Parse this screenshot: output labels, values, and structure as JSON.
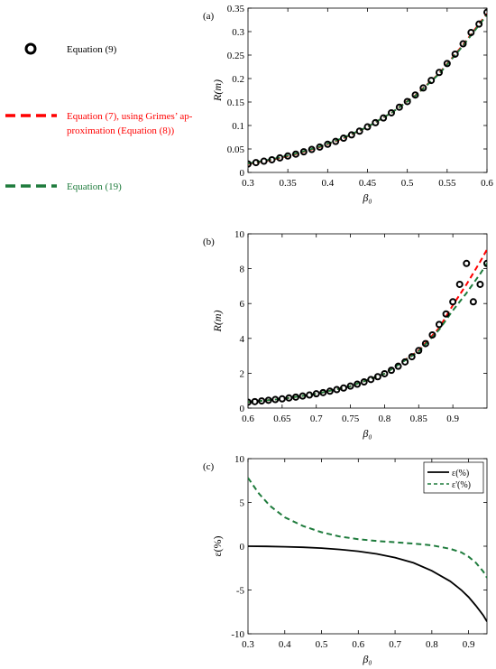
{
  "legend_panel": {
    "items": [
      {
        "label": "Equation (9)",
        "marker": "circle",
        "color": "#000000"
      },
      {
        "label_lines": [
          "Equation (7), using Grimes’ ap-",
          "proximation (Equation (8))"
        ],
        "marker": "dashed-line",
        "color": "#ff0000"
      },
      {
        "label": "Equation (19)",
        "marker": "dashed-line",
        "color": "#1e7b3c"
      }
    ]
  },
  "chart_data": [
    {
      "panel_label": "(a)",
      "type": "line",
      "xlabel": "β₀",
      "ylabel": "R(m)",
      "xlim": [
        0.3,
        0.6
      ],
      "ylim": [
        0,
        0.35
      ],
      "xticks": [
        "0.3",
        "0.35",
        "0.4",
        "0.45",
        "0.5",
        "0.55",
        "0.6"
      ],
      "yticks": [
        "0",
        "0.05",
        "0.1",
        "0.15",
        "0.2",
        "0.25",
        "0.3",
        "0.35"
      ],
      "grid": false,
      "series": [
        {
          "name": "Equation (9)",
          "style": "circles",
          "color": "#000000",
          "x": [
            0.3,
            0.31,
            0.32,
            0.33,
            0.34,
            0.35,
            0.36,
            0.37,
            0.38,
            0.39,
            0.4,
            0.41,
            0.42,
            0.43,
            0.44,
            0.45,
            0.46,
            0.47,
            0.48,
            0.49,
            0.5,
            0.51,
            0.52,
            0.53,
            0.54,
            0.55,
            0.56,
            0.57,
            0.58,
            0.59,
            0.6
          ],
          "y": [
            0.018,
            0.021,
            0.024,
            0.027,
            0.031,
            0.035,
            0.039,
            0.044,
            0.049,
            0.054,
            0.06,
            0.066,
            0.073,
            0.08,
            0.088,
            0.097,
            0.106,
            0.116,
            0.127,
            0.139,
            0.151,
            0.165,
            0.18,
            0.196,
            0.213,
            0.232,
            0.252,
            0.274,
            0.298,
            0.316,
            0.341
          ]
        },
        {
          "name": "Equation (7)",
          "style": "dashed",
          "color": "#ff0000",
          "x": [
            0.3,
            0.33,
            0.36,
            0.39,
            0.42,
            0.45,
            0.48,
            0.51,
            0.54,
            0.57,
            0.6
          ],
          "y": [
            0.018,
            0.027,
            0.039,
            0.054,
            0.073,
            0.097,
            0.127,
            0.164,
            0.211,
            0.272,
            0.338
          ]
        },
        {
          "name": "Equation (19)",
          "style": "dashed",
          "color": "#1e7b3c",
          "x": [
            0.3,
            0.33,
            0.36,
            0.39,
            0.42,
            0.45,
            0.48,
            0.51,
            0.54,
            0.57,
            0.6
          ],
          "y": [
            0.019,
            0.028,
            0.04,
            0.055,
            0.074,
            0.097,
            0.127,
            0.163,
            0.21,
            0.27,
            0.336
          ]
        }
      ]
    },
    {
      "panel_label": "(b)",
      "type": "line",
      "xlabel": "β₀",
      "ylabel": "R(m)",
      "xlim": [
        0.6,
        0.95
      ],
      "ylim": [
        0,
        10
      ],
      "xticks": [
        "0.6",
        "0.65",
        "0.7",
        "0.75",
        "0.8",
        "0.85",
        "0.9"
      ],
      "yticks": [
        "0",
        "2",
        "4",
        "6",
        "8",
        "10"
      ],
      "grid": false,
      "series": [
        {
          "name": "Equation (9)",
          "style": "circles",
          "color": "#000000",
          "x": [
            0.6,
            0.61,
            0.62,
            0.63,
            0.64,
            0.65,
            0.66,
            0.67,
            0.68,
            0.69,
            0.7,
            0.71,
            0.72,
            0.73,
            0.74,
            0.75,
            0.76,
            0.77,
            0.78,
            0.79,
            0.8,
            0.81,
            0.82,
            0.83,
            0.84,
            0.85,
            0.86,
            0.87,
            0.88,
            0.89,
            0.9,
            0.91,
            0.92,
            0.93,
            0.94,
            0.95
          ],
          "y": [
            0.34,
            0.37,
            0.41,
            0.45,
            0.49,
            0.53,
            0.58,
            0.63,
            0.69,
            0.75,
            0.82,
            0.89,
            0.97,
            1.06,
            1.15,
            1.26,
            1.37,
            1.5,
            1.64,
            1.8,
            1.97,
            2.17,
            2.4,
            2.65,
            2.95,
            3.3,
            3.7,
            4.2,
            4.8,
            5.4,
            6.1,
            7.1,
            8.3,
            6.1,
            7.1,
            8.3
          ]
        },
        {
          "name": "Equation (7)",
          "style": "dashed",
          "color": "#ff0000",
          "x": [
            0.6,
            0.65,
            0.7,
            0.75,
            0.8,
            0.85,
            0.88,
            0.9,
            0.92,
            0.94,
            0.95
          ],
          "y": [
            0.34,
            0.53,
            0.82,
            1.26,
            1.97,
            3.3,
            4.6,
            5.9,
            7.1,
            8.4,
            9.1
          ]
        },
        {
          "name": "Equation (19)",
          "style": "dashed",
          "color": "#1e7b3c",
          "x": [
            0.6,
            0.65,
            0.7,
            0.75,
            0.8,
            0.85,
            0.88,
            0.9,
            0.92,
            0.94,
            0.95
          ],
          "y": [
            0.34,
            0.53,
            0.82,
            1.26,
            1.97,
            3.25,
            4.5,
            5.6,
            6.6,
            7.7,
            8.3
          ]
        }
      ]
    },
    {
      "panel_label": "(c)",
      "type": "line",
      "xlabel": "β₀",
      "ylabel": "ε(%)",
      "xlim": [
        0.3,
        0.95
      ],
      "ylim": [
        -10,
        10
      ],
      "xticks": [
        "0.3",
        "0.4",
        "0.5",
        "0.6",
        "0.7",
        "0.8",
        "0.9"
      ],
      "yticks": [
        "-10",
        "-5",
        "0",
        "5",
        "10"
      ],
      "grid": false,
      "legend_position": "top-right",
      "series": [
        {
          "name": "ε(%)",
          "style": "solid",
          "color": "#000000",
          "x": [
            0.3,
            0.35,
            0.4,
            0.45,
            0.5,
            0.55,
            0.6,
            0.65,
            0.7,
            0.75,
            0.8,
            0.85,
            0.88,
            0.9,
            0.92,
            0.94,
            0.95
          ],
          "y": [
            0.0,
            -0.02,
            -0.06,
            -0.12,
            -0.22,
            -0.37,
            -0.58,
            -0.88,
            -1.3,
            -1.9,
            -2.8,
            -4.0,
            -5.0,
            -5.8,
            -6.8,
            -7.9,
            -8.6
          ]
        },
        {
          "name": "ε'(%)",
          "style": "dashed",
          "color": "#1e7b3c",
          "x": [
            0.3,
            0.33,
            0.36,
            0.4,
            0.45,
            0.5,
            0.55,
            0.6,
            0.65,
            0.7,
            0.75,
            0.8,
            0.85,
            0.88,
            0.9,
            0.92,
            0.94,
            0.95
          ],
          "y": [
            7.8,
            6.0,
            4.6,
            3.3,
            2.3,
            1.6,
            1.1,
            0.8,
            0.6,
            0.45,
            0.3,
            0.1,
            -0.3,
            -0.7,
            -1.2,
            -1.9,
            -2.9,
            -3.6
          ]
        }
      ]
    }
  ]
}
